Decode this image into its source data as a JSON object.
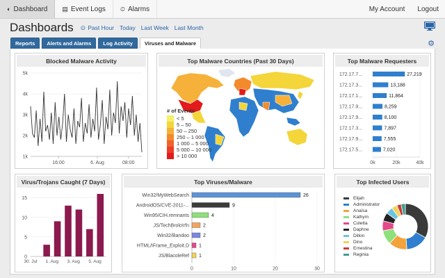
{
  "nav": {
    "items": [
      {
        "label": "Dashboard",
        "icon": "dashboard-icon"
      },
      {
        "label": "Event Logs",
        "icon": "list-icon"
      },
      {
        "label": "Alarms",
        "icon": "alarm-icon"
      }
    ],
    "right": [
      "My Account",
      "Logout"
    ]
  },
  "header": {
    "title": "Dashboards",
    "ranges": [
      "Past Hour",
      "Today",
      "Last Week",
      "Last Month"
    ]
  },
  "tabs": [
    "Reports",
    "Alerts and Alarms",
    "Log Activity",
    "Viruses and Malware"
  ],
  "colors": {
    "accent": "#31699d",
    "link": "#2a64a8",
    "bar_blue": "#2f7fce",
    "maroon": "#8b1a4e"
  },
  "panels": {
    "blocked": "Blocked Malware Activity",
    "countries": "Top Malware Countries (Past 30 Days)",
    "requesters": "Top Malware Requesters",
    "caught": "Virus/Trojans Caught (7 Days)",
    "viruses": "Top Viruses/Malware",
    "infected": "Top Infected Users"
  },
  "map_legend": {
    "title": "# of Events",
    "items": [
      {
        "label": "< 5",
        "color": "#f5f06a"
      },
      {
        "label": "5 – 50",
        "color": "#f4d53a"
      },
      {
        "label": "50 – 250",
        "color": "#f6b13a"
      },
      {
        "label": "250 – 1 000",
        "color": "#f38a2c"
      },
      {
        "label": "1 000 – 5 000",
        "color": "#f0642a"
      },
      {
        "label": "5 000 – 10 000",
        "color": "#ec3d26"
      },
      {
        "label": "> 10 000",
        "color": "#e21b1b"
      }
    ]
  },
  "chart_data": [
    {
      "type": "line",
      "title": "Blocked Malware Activity",
      "x_ticks": [
        "16:00",
        "6. Aug",
        "08:00"
      ],
      "y_ticks": [
        "1k",
        "2k",
        "3k",
        "4k",
        "5k"
      ],
      "ylim": [
        1000,
        5000
      ],
      "values": [
        3400,
        2100,
        1900,
        3200,
        1500,
        2800,
        1700,
        4100,
        2200,
        2500,
        1800,
        3100,
        1600,
        3600,
        2000,
        2900,
        1800,
        2600,
        4000,
        1700,
        3000,
        2300,
        1900,
        3300,
        1600,
        2700,
        2400,
        3800,
        1700,
        2600,
        2100,
        3500,
        1900,
        2800,
        2200,
        4300,
        1800,
        2500,
        3700,
        1600,
        2900,
        2300,
        4200,
        2000,
        3100,
        2600,
        4600,
        2100,
        3400,
        2700,
        3600,
        1900,
        3300,
        2500,
        3900,
        2000,
        3000,
        1700,
        2600,
        1200
      ]
    },
    {
      "type": "bar",
      "title": "Top Malware Requesters",
      "orientation": "horizontal",
      "categories": [
        "172.17.7...",
        "172.17.3...",
        "172.17.1...",
        "172.17.9...",
        "172.17.9...",
        "172.17.3...",
        "172.17.9...",
        "172.17.5..."
      ],
      "values": [
        27219,
        13188,
        11864,
        8259,
        8100,
        7897,
        7555,
        7020
      ],
      "value_labels": [
        "27,219",
        "13,188",
        "11,864",
        "8,259",
        "8,100",
        "7,897",
        "7,555",
        "7,020"
      ],
      "x_ticks": [
        "0k",
        "20k",
        "40k"
      ],
      "xlim": [
        0,
        40000
      ]
    },
    {
      "type": "bar",
      "title": "Virus/Trojans Caught (7 Days)",
      "categories": [
        "30. Jul",
        "1. Aug",
        "3. Aug",
        "5. Aug"
      ],
      "x_ticks": [
        "30. Jul",
        "1. Aug",
        "3. Aug",
        "5. Aug"
      ],
      "y_ticks": [
        "0",
        "5",
        "10",
        "15"
      ],
      "ylim": [
        0,
        16
      ],
      "bars": [
        {
          "pos": 0.5,
          "value": 0
        },
        {
          "pos": 1.5,
          "value": 3
        },
        {
          "pos": 2.5,
          "value": 9
        },
        {
          "pos": 3.5,
          "value": 13
        },
        {
          "pos": 4.5,
          "value": 12
        },
        {
          "pos": 5.5,
          "value": 7
        },
        {
          "pos": 6.5,
          "value": 16
        }
      ],
      "x_tick_pos": [
        0,
        2,
        4,
        6
      ],
      "xlim": [
        0,
        7
      ]
    },
    {
      "type": "bar",
      "title": "Top Viruses/Malware",
      "orientation": "horizontal",
      "categories": [
        "Win32/MyWebSearch",
        "AndroidOS/CVE-2011-...",
        "Win95/CIH.remnants",
        "JS/TechBrolo!rfn",
        "Win32/Bandoo",
        "HTML/IFrame_Exploit.D",
        "JS/BlacoleRef"
      ],
      "values": [
        26,
        9,
        4,
        2,
        2,
        1,
        1
      ],
      "colors": [
        "#5b93d6",
        "#3b3b3b",
        "#8ee07a",
        "#f4a460",
        "#7b86e0",
        "#e4498a",
        "#f2d35a"
      ],
      "x_ticks": [
        "0",
        "10",
        "20",
        "30"
      ],
      "xlim": [
        0,
        30
      ]
    },
    {
      "type": "pie",
      "title": "Top Infected Users",
      "labels": [
        "Elijah",
        "Administrator",
        "Anaïsa",
        "Kathym",
        "Coletta",
        "Daphne",
        "Dillon",
        "Dino",
        "Ernestina",
        "Reginia"
      ],
      "values": [
        33,
        16,
        13,
        10,
        7,
        6,
        5,
        4,
        3,
        3
      ],
      "colors": [
        "#3a3a3a",
        "#2f7fce",
        "#f4a23a",
        "#8ee07a",
        "#e4498a",
        "#222222",
        "#6dc3e4",
        "#f2d35a",
        "#c93a3a",
        "#3e9e8e"
      ]
    }
  ]
}
